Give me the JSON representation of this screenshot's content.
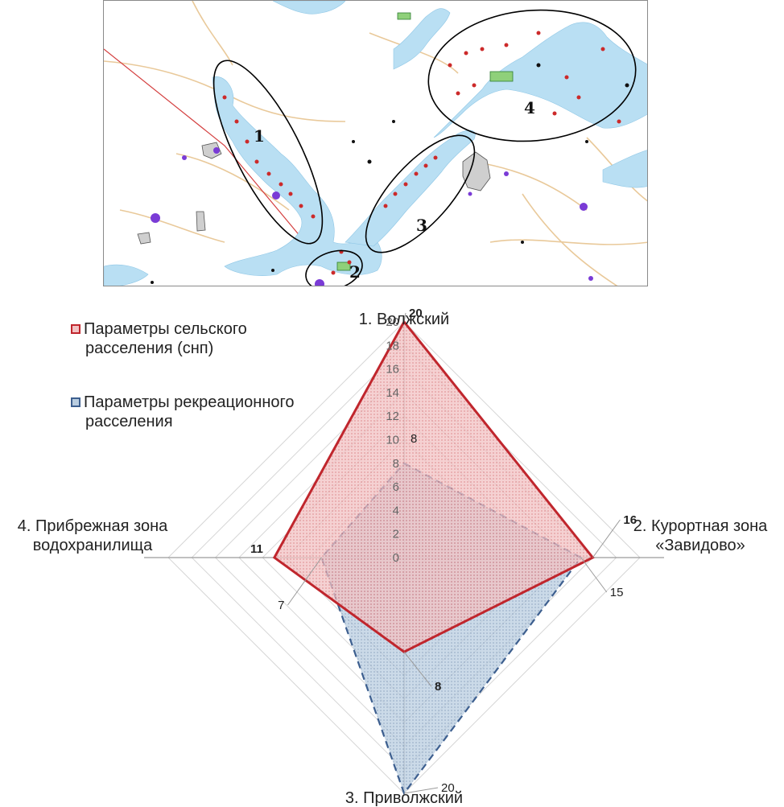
{
  "map": {
    "zones": [
      {
        "label": "1"
      },
      {
        "label": "2"
      },
      {
        "label": "3"
      },
      {
        "label": "4"
      }
    ],
    "colors": {
      "water": "#b9dff3",
      "road": "#e9c99a",
      "outline": "#000000",
      "marker": "#cc2a2a",
      "settlement": "#7a3bd6"
    }
  },
  "legend": {
    "rural_line1": "Параметры сельского",
    "rural_line2": "расселения (снп)",
    "rec_line1": "Параметры рекреационного",
    "rec_line2": "расселения"
  },
  "chart_data": {
    "type": "radar",
    "axes": [
      {
        "lines": [
          "1. Волжский"
        ]
      },
      {
        "lines": [
          "2. Курортная зона",
          "«Завидово»"
        ]
      },
      {
        "lines": [
          "3. Приволжский"
        ]
      },
      {
        "lines": [
          "4. Прибрежная зона",
          "водохранилища"
        ]
      }
    ],
    "rlim": [
      0,
      20
    ],
    "tick_labels": [
      "0",
      "2",
      "4",
      "6",
      "8",
      "10",
      "12",
      "14",
      "16",
      "18",
      "20"
    ],
    "grid": true,
    "series": [
      {
        "name": "Параметры сельского расселения (снп)",
        "values": [
          20,
          16,
          8,
          11
        ],
        "labels": [
          "20",
          "16",
          "8",
          "11"
        ],
        "color": "#c0262d",
        "fill": "#f2c2c3",
        "dash": false
      },
      {
        "name": "Параметры рекреационного расселения",
        "values": [
          8,
          15,
          20,
          7
        ],
        "labels": [
          "8",
          "15",
          "20",
          "7"
        ],
        "color": "#3d5f8f",
        "fill": "#b9cde0",
        "dash": true
      }
    ]
  }
}
